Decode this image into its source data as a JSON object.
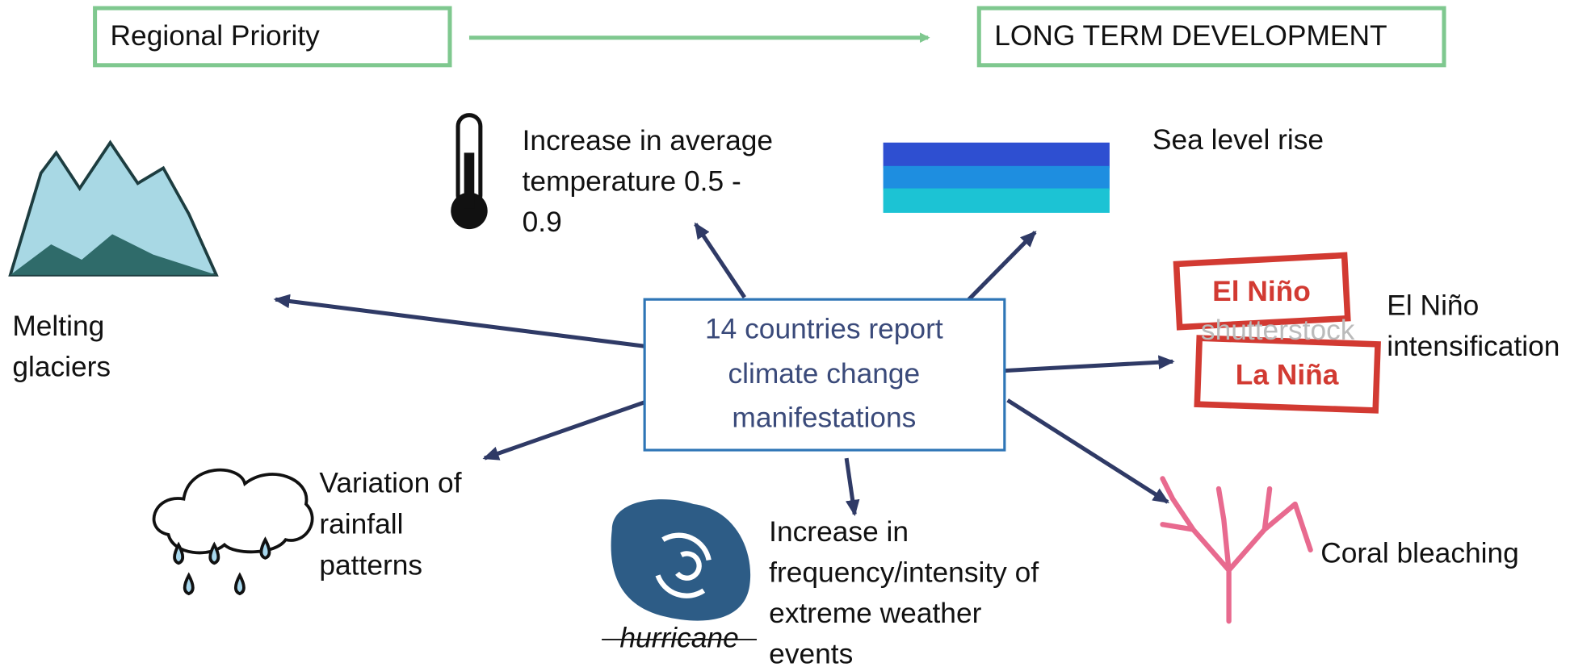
{
  "header": {
    "left_box": "Regional Priority",
    "right_box": "LONG TERM DEVELOPMENT"
  },
  "center": {
    "lines": [
      "14 countries report",
      "climate change",
      "manifestations"
    ]
  },
  "nodes": [
    {
      "lines": [
        "Increase in average",
        "temperature 0.5 -",
        "0.9"
      ]
    },
    {
      "lines": [
        "Sea level rise"
      ]
    },
    {
      "lines": [
        "Melting",
        "glaciers"
      ]
    },
    {
      "lines": [
        "El Niño",
        "intensification"
      ]
    },
    {
      "lines": [
        "Variation of",
        "rainfall",
        "patterns"
      ]
    },
    {
      "lines": [
        "Increase in",
        "frequency/intensity of",
        "extreme weather",
        "events"
      ]
    },
    {
      "lines": [
        "Coral bleaching"
      ]
    }
  ],
  "icons": {
    "stamp_top": "El Niño",
    "stamp_bottom": "La Niña",
    "watermark": "shutterstock",
    "hurricane_caption": "hurricane"
  }
}
